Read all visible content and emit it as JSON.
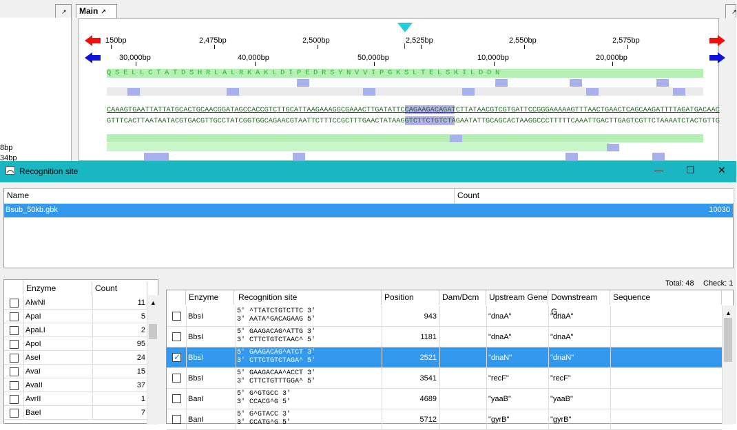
{
  "tabs": {
    "main": "Main"
  },
  "left_pane": {
    "labels": [
      "8bp",
      "34bp"
    ]
  },
  "ruler_bp": [
    "150bp",
    "2,475bp",
    "2,500bp",
    "2,525bp",
    "2,550bp",
    "2,575bp"
  ],
  "ruler_genome": [
    "30,000bp",
    "40,000bp",
    "50,000bp",
    "10,000bp",
    "20,000bp"
  ],
  "amino_acids": "QSELLCTATDSHRLALRKAKLDIPEDRSYNVVIPGKSLTELSKILDDN",
  "dna_top": "CAAAGTGAATTATTATGCACTGCAACGGATAGCCACCGTCTTGCATTAAGAAAGGCGAAACTTGATATTCCAGAAGACAGATCTTATAACGTCGTGATTCCGGGAAAAAGTTTAACTGAACTCAGCAAGATTTTAGATGACAAC",
  "dna_bottom": "GTTTCACTTAATAATACGTGACGTTGCCTATCGGTGGCAGAACGTAATTCTTTCCGCTTTGAACTATAAGGTCTTCTGTCTAGAATATTGCAGCACTAAGGCCCTTTTTCAAATTGACTTGAGTCGTTCTAAAATCTACTGTTG",
  "dialog": {
    "title": "Recognition site",
    "buttons": {
      "minimize": "—",
      "maximize": "☐",
      "close": "✕"
    }
  },
  "files_table": {
    "headers": {
      "name": "Name",
      "count": "Count"
    },
    "rows": [
      {
        "name": "Bsub_50kb.gbk",
        "count": "10030"
      }
    ]
  },
  "enzyme_list": {
    "headers": {
      "enzyme": "Enzyme",
      "count": "Count"
    },
    "rows": [
      {
        "enzyme": "AlwNI",
        "count": "11"
      },
      {
        "enzyme": "ApaI",
        "count": "5"
      },
      {
        "enzyme": "ApaLI",
        "count": "2"
      },
      {
        "enzyme": "ApoI",
        "count": "95"
      },
      {
        "enzyme": "AseI",
        "count": "24"
      },
      {
        "enzyme": "AvaI",
        "count": "15"
      },
      {
        "enzyme": "AvaII",
        "count": "37"
      },
      {
        "enzyme": "AvrII",
        "count": "1"
      },
      {
        "enzyme": "BaeI",
        "count": "7"
      }
    ]
  },
  "status": {
    "total_label": "Total: 48",
    "check_label": "Check: 1"
  },
  "sites_table": {
    "headers": {
      "enzyme": "Enzyme",
      "recognition": "Recognition site",
      "position": "Position",
      "dam": "Dam/Dcm",
      "up": "Upstream Gene",
      "down": "Downstream G...",
      "seq": "Sequence"
    },
    "rows": [
      {
        "checked": false,
        "enzyme": "BbsI",
        "rec1": "5' ^TTATCTGTCTTC 3'",
        "rec2": "3' AATA^GACAGAAG 5'",
        "position": "943",
        "dam": "",
        "up": "\"dnaA\"",
        "down": "\"dnaA\""
      },
      {
        "checked": false,
        "enzyme": "BbsI",
        "rec1": "5' GAAGACAG^ATTG 3'",
        "rec2": "3' CTTCTGTCTAAC^ 5'",
        "position": "1181",
        "dam": "",
        "up": "\"dnaA\"",
        "down": "\"dnaA\""
      },
      {
        "checked": true,
        "enzyme": "BbsI",
        "rec1": "5' GAAGACAG^ATCT 3'",
        "rec2": "3' CTTCTGTCTAGA^ 5'",
        "position": "2521",
        "dam": "",
        "up": "\"dnaN\"",
        "down": "\"dnaN\""
      },
      {
        "checked": false,
        "enzyme": "BbsI",
        "rec1": "5' GAAGACAA^ACCT 3'",
        "rec2": "3' CTTCTGTTTGGA^ 5'",
        "position": "3541",
        "dam": "",
        "up": "\"recF\"",
        "down": "\"recF\""
      },
      {
        "checked": false,
        "enzyme": "BanI",
        "rec1": "5' G^GTGCC 3'",
        "rec2": "3' CCACG^G 5'",
        "position": "4689",
        "dam": "",
        "up": "\"yaaB\"",
        "down": "\"yaaB\""
      },
      {
        "checked": false,
        "enzyme": "BanI",
        "rec1": "5' G^GTACC 3'",
        "rec2": "3' CCATG^G 5'",
        "position": "5712",
        "dam": "",
        "up": "\"gyrB\"",
        "down": "\"gyrB\""
      }
    ]
  },
  "colors": {
    "selection": "#3399ee",
    "title_bar": "#1ab6c2",
    "arrow_red": "#ee1111",
    "arrow_blue": "#1111dd",
    "marker": "#22ccdd"
  }
}
